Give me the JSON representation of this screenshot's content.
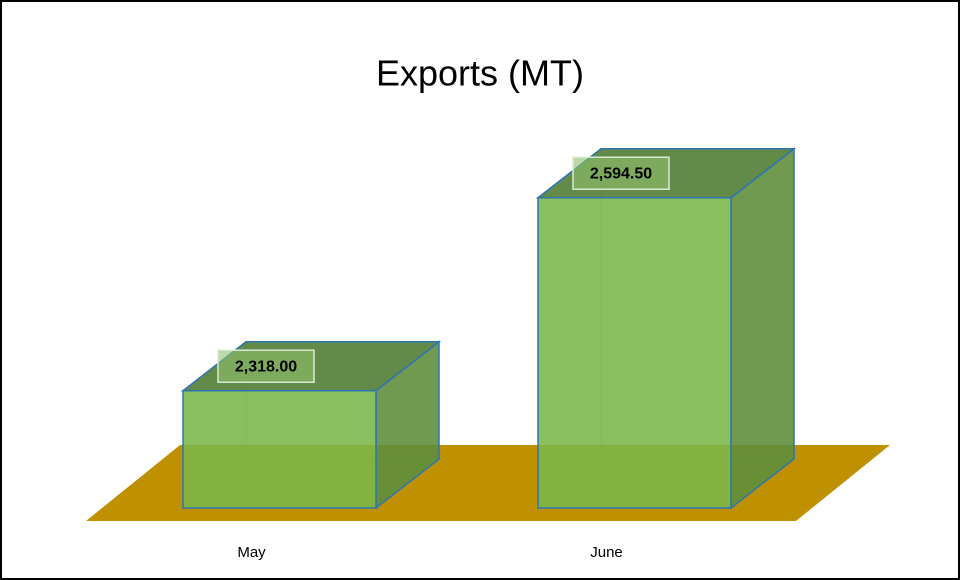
{
  "chart_data": {
    "type": "bar3d",
    "title": "Exports (MT)",
    "categories": [
      "May",
      "June"
    ],
    "values": [
      2318,
      2594.5
    ],
    "value_labels": [
      "2,318.00",
      "2,594.50"
    ],
    "color": "#7ab648",
    "floor_color": "#bf9000",
    "ylim": [
      2150,
      2650
    ]
  }
}
